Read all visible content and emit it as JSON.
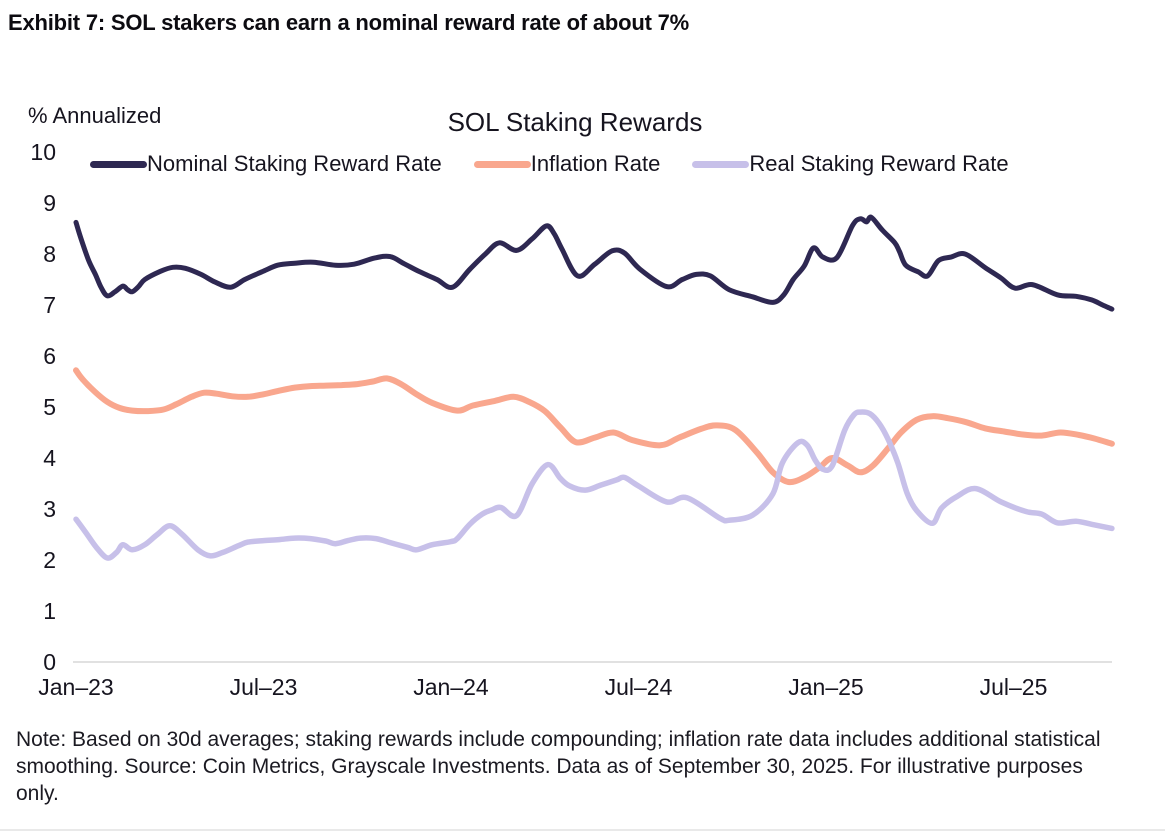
{
  "page": {
    "exhibit_title": "Exhibit 7: SOL stakers can earn a nominal reward rate of about 7%",
    "note_text": "Note: Based on 30d averages; staking rewards include compounding; inflation rate data includes additional statistical smoothing. Source: Coin Metrics, Grayscale Investments. Data as of September 30, 2025. For illustrative purposes only."
  },
  "chart_data": {
    "type": "line",
    "title": "SOL Staking Rewards",
    "y_axis_label": "% Annualized",
    "xlabel": "",
    "ylabel": "% Annualized",
    "ylim": [
      0,
      10
    ],
    "y_ticks": [
      10,
      9,
      8,
      7,
      6,
      5,
      4,
      3,
      2,
      1,
      0
    ],
    "x_ticks": [
      "Jan–23",
      "Jul–23",
      "Jan–24",
      "Jul–24",
      "Jan–25",
      "Jul–25"
    ],
    "x_unit": "months since Jan-2023, data through Sep-30-2025",
    "grid": "baseline-only",
    "legend_position": "top",
    "axis_line_color": "#e1e1e1",
    "series": [
      {
        "name": "Nominal Staking Reward Rate",
        "color": "#2e2852",
        "points": [
          [
            0,
            8.62
          ],
          [
            0.15,
            8.32
          ],
          [
            0.4,
            7.88
          ],
          [
            0.62,
            7.6
          ],
          [
            0.8,
            7.35
          ],
          [
            1,
            7.18
          ],
          [
            1.25,
            7.26
          ],
          [
            1.5,
            7.37
          ],
          [
            1.65,
            7.3
          ],
          [
            1.8,
            7.26
          ],
          [
            2,
            7.36
          ],
          [
            2.2,
            7.5
          ],
          [
            2.7,
            7.66
          ],
          [
            3.1,
            7.74
          ],
          [
            3.5,
            7.72
          ],
          [
            4,
            7.6
          ],
          [
            4.45,
            7.45
          ],
          [
            4.95,
            7.35
          ],
          [
            5.4,
            7.5
          ],
          [
            5.95,
            7.65
          ],
          [
            6.45,
            7.78
          ],
          [
            7,
            7.82
          ],
          [
            7.6,
            7.84
          ],
          [
            8.3,
            7.78
          ],
          [
            8.9,
            7.8
          ],
          [
            9.55,
            7.92
          ],
          [
            10.05,
            7.95
          ],
          [
            10.5,
            7.81
          ],
          [
            11,
            7.65
          ],
          [
            11.55,
            7.5
          ],
          [
            12.05,
            7.35
          ],
          [
            12.6,
            7.7
          ],
          [
            13.1,
            8
          ],
          [
            13.55,
            8.22
          ],
          [
            14.1,
            8.07
          ],
          [
            14.6,
            8.3
          ],
          [
            15.05,
            8.55
          ],
          [
            15.3,
            8.4
          ],
          [
            15.55,
            8.1
          ],
          [
            16.05,
            7.57
          ],
          [
            16.6,
            7.8
          ],
          [
            17.15,
            8.06
          ],
          [
            17.55,
            8.02
          ],
          [
            18.05,
            7.7
          ],
          [
            18.9,
            7.36
          ],
          [
            19.4,
            7.5
          ],
          [
            19.85,
            7.6
          ],
          [
            20.3,
            7.57
          ],
          [
            20.9,
            7.3
          ],
          [
            21.65,
            7.16
          ],
          [
            22.3,
            7.05
          ],
          [
            22.65,
            7.2
          ],
          [
            22.95,
            7.5
          ],
          [
            23.3,
            7.76
          ],
          [
            23.6,
            8.12
          ],
          [
            23.9,
            7.94
          ],
          [
            24.35,
            7.93
          ],
          [
            24.85,
            8.56
          ],
          [
            25.1,
            8.69
          ],
          [
            25.3,
            8.63
          ],
          [
            25.45,
            8.72
          ],
          [
            25.8,
            8.47
          ],
          [
            26.2,
            8.22
          ],
          [
            26.35,
            8.05
          ],
          [
            26.55,
            7.78
          ],
          [
            26.95,
            7.65
          ],
          [
            27.25,
            7.57
          ],
          [
            27.6,
            7.87
          ],
          [
            28,
            7.94
          ],
          [
            28.45,
            8
          ],
          [
            29.1,
            7.73
          ],
          [
            29.6,
            7.53
          ],
          [
            30.05,
            7.33
          ],
          [
            30.6,
            7.4
          ],
          [
            31.4,
            7.2
          ],
          [
            32,
            7.17
          ],
          [
            32.5,
            7.1
          ],
          [
            32.85,
            7
          ],
          [
            33.15,
            6.92
          ]
        ]
      },
      {
        "name": "Inflation Rate",
        "color": "#f9a78e",
        "points": [
          [
            0,
            5.72
          ],
          [
            0.2,
            5.55
          ],
          [
            0.6,
            5.3
          ],
          [
            1,
            5.1
          ],
          [
            1.4,
            4.98
          ],
          [
            1.8,
            4.93
          ],
          [
            2.3,
            4.92
          ],
          [
            2.8,
            4.95
          ],
          [
            3.2,
            5.05
          ],
          [
            3.7,
            5.2
          ],
          [
            4.1,
            5.28
          ],
          [
            4.5,
            5.26
          ],
          [
            5,
            5.21
          ],
          [
            5.5,
            5.2
          ],
          [
            6,
            5.25
          ],
          [
            6.5,
            5.32
          ],
          [
            7,
            5.38
          ],
          [
            7.5,
            5.41
          ],
          [
            8,
            5.42
          ],
          [
            8.5,
            5.43
          ],
          [
            9,
            5.45
          ],
          [
            9.5,
            5.5
          ],
          [
            9.95,
            5.56
          ],
          [
            10.4,
            5.45
          ],
          [
            10.9,
            5.25
          ],
          [
            11.4,
            5.08
          ],
          [
            12.2,
            4.93
          ],
          [
            12.7,
            5.03
          ],
          [
            13.4,
            5.12
          ],
          [
            14,
            5.2
          ],
          [
            14.5,
            5.1
          ],
          [
            15,
            4.92
          ],
          [
            15.5,
            4.6
          ],
          [
            16,
            4.31
          ],
          [
            16.6,
            4.4
          ],
          [
            17.2,
            4.5
          ],
          [
            17.8,
            4.35
          ],
          [
            18.7,
            4.25
          ],
          [
            19.3,
            4.4
          ],
          [
            20,
            4.57
          ],
          [
            20.5,
            4.64
          ],
          [
            21.1,
            4.55
          ],
          [
            21.8,
            4.1
          ],
          [
            22.3,
            3.72
          ],
          [
            22.8,
            3.53
          ],
          [
            23.3,
            3.62
          ],
          [
            23.8,
            3.82
          ],
          [
            24.2,
            4
          ],
          [
            24.7,
            3.85
          ],
          [
            25.1,
            3.72
          ],
          [
            25.5,
            3.85
          ],
          [
            26,
            4.2
          ],
          [
            26.4,
            4.5
          ],
          [
            26.9,
            4.75
          ],
          [
            27.4,
            4.82
          ],
          [
            27.9,
            4.78
          ],
          [
            28.5,
            4.7
          ],
          [
            29.1,
            4.58
          ],
          [
            29.7,
            4.52
          ],
          [
            30.3,
            4.46
          ],
          [
            30.9,
            4.44
          ],
          [
            31.5,
            4.5
          ],
          [
            32.1,
            4.45
          ],
          [
            32.6,
            4.38
          ],
          [
            33.15,
            4.28
          ]
        ]
      },
      {
        "name": "Real Staking Reward Rate",
        "color": "#c7c0e9",
        "points": [
          [
            0,
            2.8
          ],
          [
            0.3,
            2.55
          ],
          [
            0.65,
            2.25
          ],
          [
            1,
            2.04
          ],
          [
            1.3,
            2.15
          ],
          [
            1.5,
            2.3
          ],
          [
            1.8,
            2.2
          ],
          [
            2.2,
            2.3
          ],
          [
            2.6,
            2.5
          ],
          [
            3,
            2.67
          ],
          [
            3.4,
            2.5
          ],
          [
            3.9,
            2.2
          ],
          [
            4.3,
            2.08
          ],
          [
            4.7,
            2.15
          ],
          [
            5.2,
            2.28
          ],
          [
            5.5,
            2.35
          ],
          [
            6,
            2.38
          ],
          [
            6.5,
            2.4
          ],
          [
            7,
            2.43
          ],
          [
            7.5,
            2.42
          ],
          [
            8,
            2.37
          ],
          [
            8.3,
            2.32
          ],
          [
            8.7,
            2.38
          ],
          [
            9.1,
            2.43
          ],
          [
            9.6,
            2.42
          ],
          [
            10,
            2.35
          ],
          [
            10.6,
            2.25
          ],
          [
            10.9,
            2.2
          ],
          [
            11.4,
            2.3
          ],
          [
            12,
            2.36
          ],
          [
            12.2,
            2.42
          ],
          [
            12.6,
            2.7
          ],
          [
            13,
            2.9
          ],
          [
            13.3,
            2.98
          ],
          [
            13.6,
            3.03
          ],
          [
            14.1,
            2.87
          ],
          [
            14.6,
            3.5
          ],
          [
            15.1,
            3.87
          ],
          [
            15.5,
            3.6
          ],
          [
            15.8,
            3.45
          ],
          [
            16.3,
            3.37
          ],
          [
            16.8,
            3.47
          ],
          [
            17.3,
            3.57
          ],
          [
            17.55,
            3.62
          ],
          [
            18,
            3.45
          ],
          [
            18.9,
            3.14
          ],
          [
            19.55,
            3.22
          ],
          [
            20.6,
            2.82
          ],
          [
            20.9,
            2.78
          ],
          [
            21.65,
            2.88
          ],
          [
            22.3,
            3.3
          ],
          [
            22.6,
            3.9
          ],
          [
            23.1,
            4.3
          ],
          [
            23.4,
            4.25
          ],
          [
            23.65,
            3.96
          ],
          [
            23.9,
            3.78
          ],
          [
            24.2,
            3.85
          ],
          [
            24.6,
            4.55
          ],
          [
            24.9,
            4.85
          ],
          [
            25.1,
            4.9
          ],
          [
            25.4,
            4.87
          ],
          [
            25.7,
            4.68
          ],
          [
            26,
            4.35
          ],
          [
            26.3,
            3.9
          ],
          [
            26.6,
            3.3
          ],
          [
            26.9,
            2.97
          ],
          [
            27.4,
            2.72
          ],
          [
            27.7,
            3.02
          ],
          [
            28.2,
            3.25
          ],
          [
            28.8,
            3.4
          ],
          [
            29.6,
            3.14
          ],
          [
            30.4,
            2.95
          ],
          [
            30.9,
            2.9
          ],
          [
            31.4,
            2.73
          ],
          [
            32,
            2.76
          ],
          [
            32.5,
            2.7
          ],
          [
            33.15,
            2.62
          ]
        ]
      }
    ]
  }
}
